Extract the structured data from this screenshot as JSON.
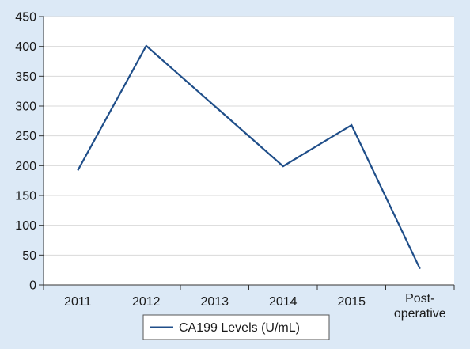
{
  "chart_data": {
    "type": "line",
    "categories": [
      "2011",
      "2012",
      "2013",
      "2014",
      "2015",
      "Post-operative"
    ],
    "category_labels": [
      [
        "2011"
      ],
      [
        "2012"
      ],
      [
        "2013"
      ],
      [
        "2014"
      ],
      [
        "2015"
      ],
      [
        "Post-",
        "operative"
      ]
    ],
    "series": [
      {
        "name": "CA199 Levels (U/mL)",
        "values": [
          192,
          401,
          300,
          199,
          268,
          27
        ],
        "color": "#1f4e89"
      }
    ],
    "y_ticks": [
      0,
      50,
      100,
      150,
      200,
      250,
      300,
      350,
      400,
      450
    ],
    "ylim": [
      0,
      450
    ],
    "grid": true,
    "legend_position": "bottom-center",
    "background_color": "#dce9f6",
    "plot_background_color": "#ffffff",
    "grid_color": "#d9d9d9",
    "axis_color": "#333333"
  }
}
